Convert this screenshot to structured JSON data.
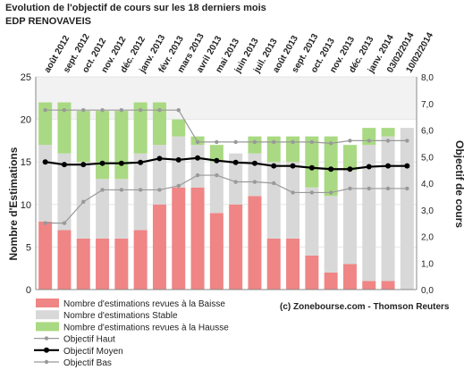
{
  "chart_data": {
    "type": "bar",
    "title": "Evolution de l'objectif de cours sur les 18 derniers mois",
    "subtitle": "EDP RENOVAVEIS",
    "ylabel_left": "Nombre d'Estimations",
    "ylabel_right": "Objectif de cours",
    "credit": "(c) Zonebourse.com - Thomson Reuters",
    "categories": [
      "août 2012",
      "sept. 2012",
      "oct. 2012",
      "nov. 2012",
      "déc. 2012",
      "janv. 2013",
      "févr. 2013",
      "mars 2013",
      "avril 2013",
      "mai 2013",
      "juin 2013",
      "juil. 2013",
      "août 2013",
      "sept. 2013",
      "oct. 2013",
      "nov. 2013",
      "déc. 2013",
      "janv. 2014",
      "03/02/2014",
      "10/02/2014"
    ],
    "left_axis": {
      "min": 0,
      "max": 25,
      "ticks": [
        0,
        5,
        10,
        15,
        20,
        25
      ]
    },
    "right_axis": {
      "min": 0,
      "max": 8,
      "ticks": [
        "0,0",
        "1,0",
        "2,0",
        "3,0",
        "4,0",
        "5,0",
        "6,0",
        "7,0",
        "8,0"
      ]
    },
    "series": [
      {
        "name": "Nombre d'estimations revues à la Baisse",
        "kind": "bar",
        "color": "#ef8585",
        "values": [
          8,
          7,
          6,
          6,
          6,
          7,
          10,
          12,
          12,
          9,
          10,
          11,
          6,
          6,
          4,
          2,
          3,
          1,
          1,
          0
        ]
      },
      {
        "name": "Nombre d'estimations Stable",
        "kind": "bar",
        "color": "#d8d8d8",
        "values": [
          9,
          9,
          9,
          7,
          7,
          9,
          7,
          6,
          5,
          6,
          6,
          5,
          9,
          9,
          8,
          9,
          11,
          16,
          17,
          19
        ]
      },
      {
        "name": "Nombre d'estimations revues à la Hausse",
        "kind": "bar",
        "color": "#a9d982",
        "values": [
          5,
          6,
          6,
          8,
          8,
          6,
          5,
          2,
          1,
          2,
          0,
          2,
          3,
          3,
          6,
          7,
          3,
          2,
          1,
          0
        ]
      },
      {
        "name": "Objectif Haut",
        "kind": "line",
        "color": "#999999",
        "values": [
          6.75,
          6.75,
          6.75,
          6.75,
          6.75,
          6.75,
          6.75,
          6.75,
          5.55,
          5.55,
          5.55,
          5.55,
          5.55,
          5.55,
          5.55,
          5.5,
          5.6,
          5.6,
          5.6,
          5.6
        ]
      },
      {
        "name": "Objectif Moyen",
        "kind": "line",
        "color": "#000000",
        "values": [
          4.8,
          4.7,
          4.7,
          4.75,
          4.75,
          4.78,
          4.93,
          4.88,
          4.95,
          4.85,
          4.78,
          4.75,
          4.65,
          4.65,
          4.58,
          4.53,
          4.53,
          4.62,
          4.65,
          4.65
        ]
      },
      {
        "name": "Objectif Bas",
        "kind": "line",
        "color": "#999999",
        "values": [
          2.5,
          2.5,
          3.3,
          3.75,
          3.75,
          3.75,
          3.75,
          3.9,
          4.3,
          4.3,
          4.05,
          4.05,
          4.0,
          3.65,
          3.65,
          3.65,
          3.8,
          3.8,
          3.8,
          3.8
        ]
      }
    ]
  }
}
